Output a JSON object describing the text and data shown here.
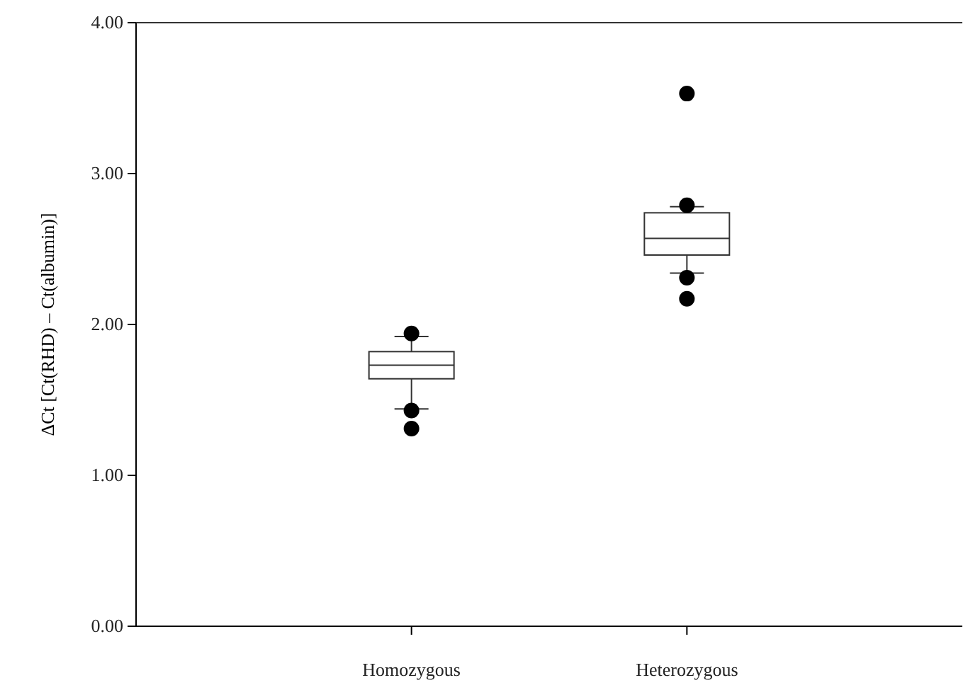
{
  "chart_data": {
    "type": "box",
    "ylabel": "ΔCt [Ct(RHD) – Ct(albumin)]",
    "categories": [
      "Homozygous",
      "Heterozygous"
    ],
    "boxes": [
      {
        "low": 1.44,
        "q1": 1.64,
        "median": 1.73,
        "q3": 1.82,
        "high": 1.92,
        "outliers": [
          1.94,
          1.43,
          1.31
        ]
      },
      {
        "low": 2.34,
        "q1": 2.46,
        "median": 2.57,
        "q3": 2.74,
        "high": 2.78,
        "outliers": [
          3.53,
          2.79,
          2.31,
          2.17
        ]
      }
    ],
    "ylim": [
      0,
      4
    ],
    "yticks": [
      {
        "value": 0,
        "label": "0.00"
      },
      {
        "value": 1,
        "label": "1.00"
      },
      {
        "value": 2,
        "label": "2.00"
      },
      {
        "value": 3,
        "label": "3.00"
      },
      {
        "value": 4,
        "label": "4.00"
      }
    ],
    "grid": false
  }
}
